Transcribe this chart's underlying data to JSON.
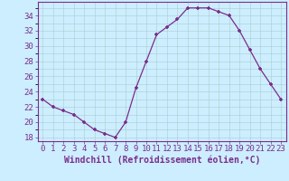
{
  "x": [
    0,
    1,
    2,
    3,
    4,
    5,
    6,
    7,
    8,
    9,
    10,
    11,
    12,
    13,
    14,
    15,
    16,
    17,
    18,
    19,
    20,
    21,
    22,
    23
  ],
  "y": [
    23,
    22,
    21.5,
    21,
    20,
    19,
    18.5,
    18,
    20,
    24.5,
    28,
    31.5,
    32.5,
    33.5,
    35,
    35,
    35,
    34.5,
    34,
    32,
    29.5,
    27,
    25,
    23
  ],
  "line_color": "#7b2d8b",
  "marker": "+",
  "background_color": "#cceeff",
  "grid_color": "#aacccc",
  "xlabel": "Windchill (Refroidissement éolien,°C)",
  "xlim_low": -0.5,
  "xlim_high": 23.5,
  "ylim_low": 17.5,
  "ylim_high": 35.8,
  "xtick_labels": [
    "0",
    "1",
    "2",
    "3",
    "4",
    "5",
    "6",
    "7",
    "8",
    "9",
    "10",
    "11",
    "12",
    "13",
    "14",
    "15",
    "16",
    "17",
    "18",
    "19",
    "20",
    "21",
    "22",
    "23"
  ],
  "ytick_values": [
    18,
    20,
    22,
    24,
    26,
    28,
    30,
    32,
    34
  ],
  "tick_color": "#7b2d8b",
  "label_color": "#7b2d8b",
  "font_size": 6.5
}
